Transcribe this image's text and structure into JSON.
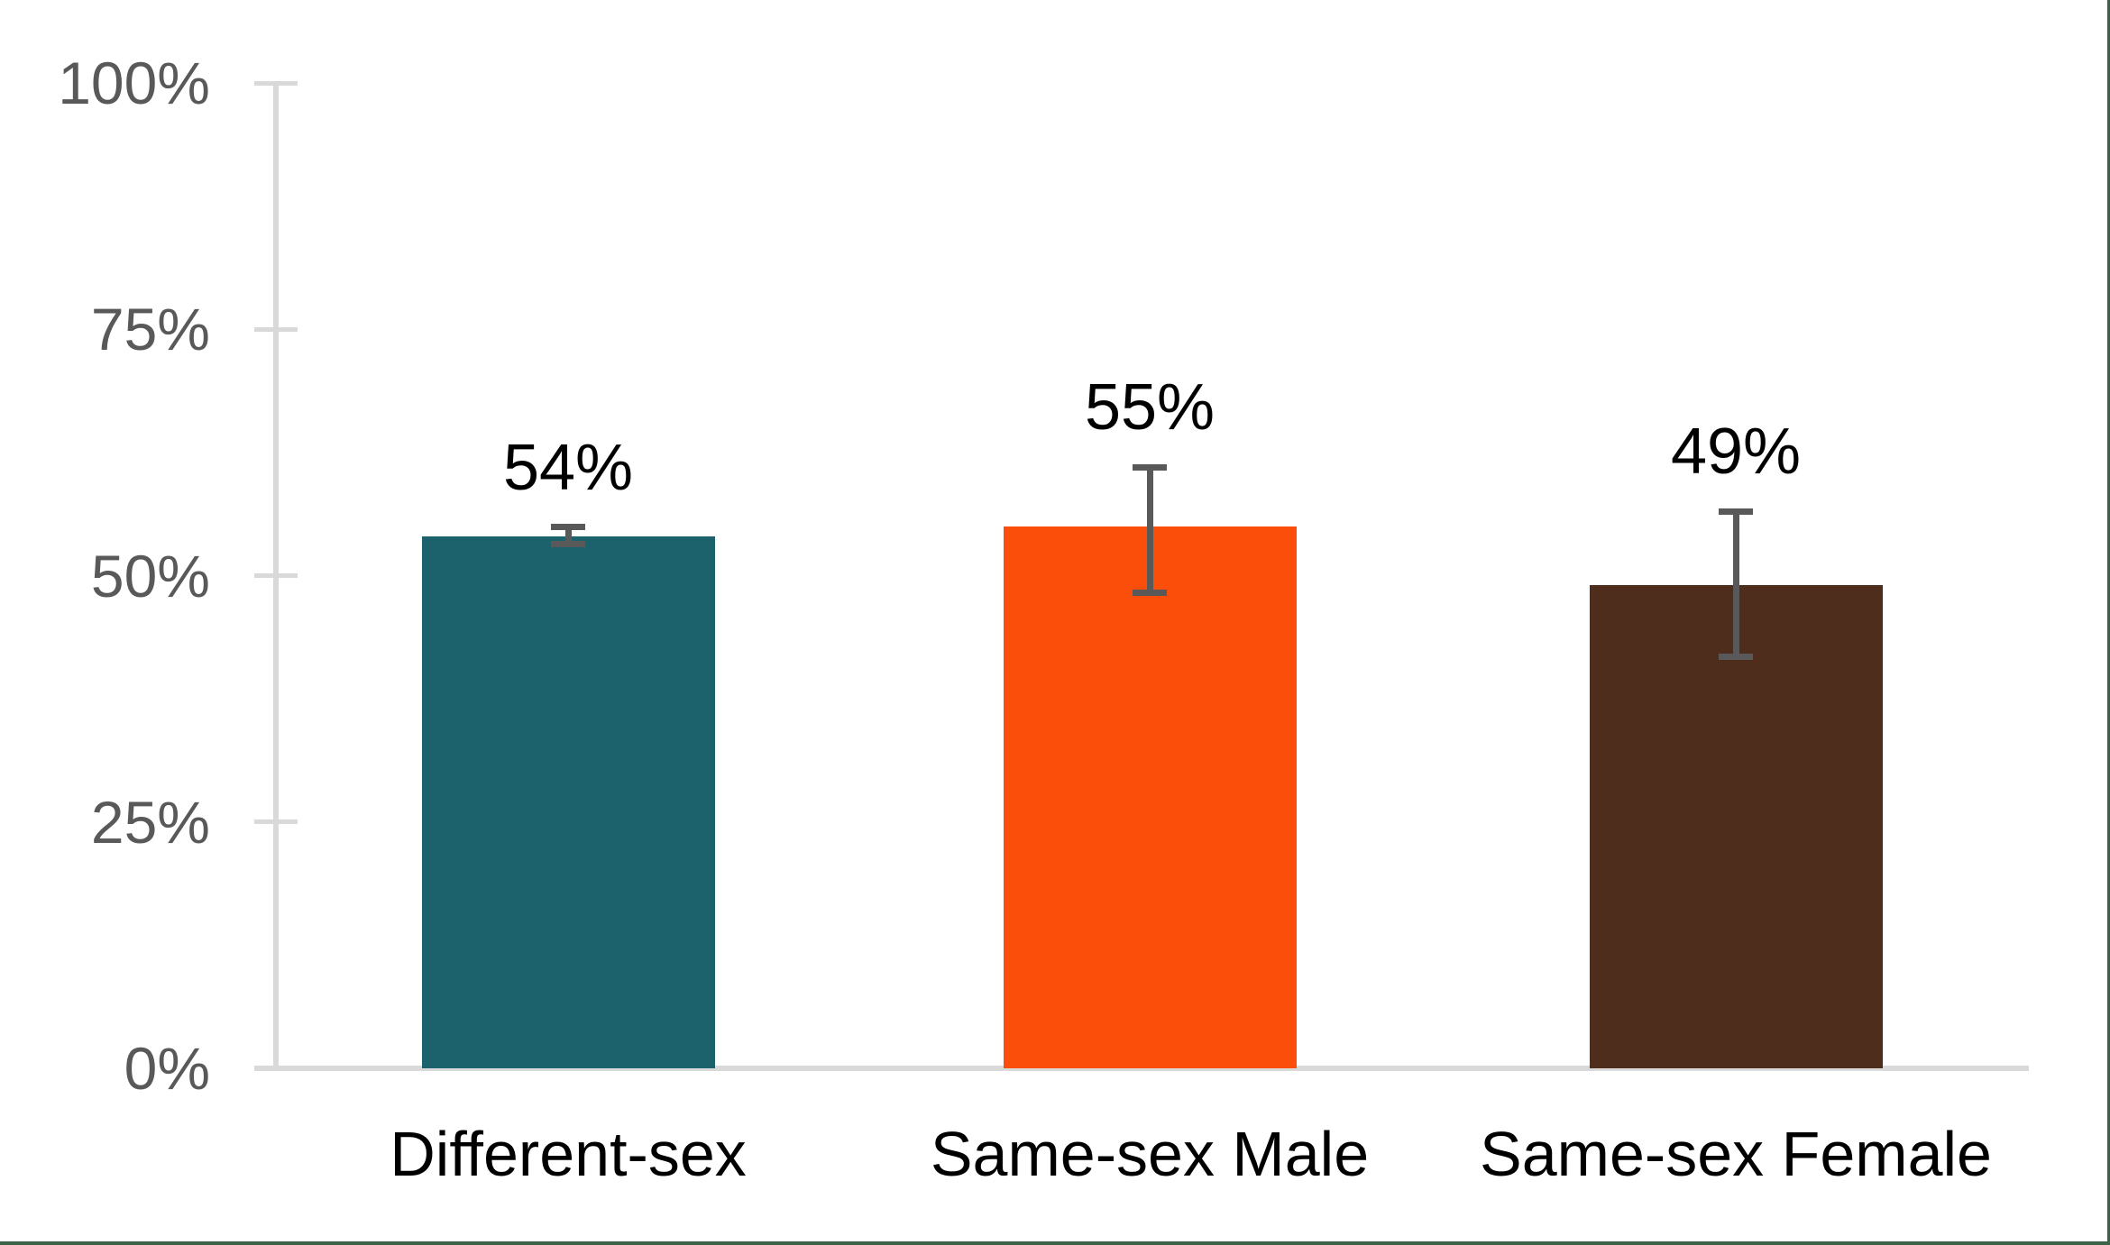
{
  "chart_data": {
    "type": "bar",
    "title": "",
    "xlabel": "",
    "ylabel": "",
    "categories": [
      "Different-sex",
      "Same-sex Male",
      "Same-sex Female"
    ],
    "series": [
      {
        "name": "percent",
        "values": [
          54,
          55,
          49
        ],
        "labels": [
          "54%",
          "55%",
          "49%"
        ],
        "colors": [
          "#1C626D",
          "#FB4E0B",
          "#4F2D1D"
        ],
        "error_bars": [
          {
            "low": 53.2,
            "high": 54.9
          },
          {
            "low": 48.3,
            "high": 61.0
          },
          {
            "low": 41.8,
            "high": 56.5
          }
        ]
      }
    ],
    "y_axis": {
      "min": 0,
      "max": 100,
      "ticks": [
        {
          "label": "0%",
          "value": 0
        },
        {
          "label": "25%",
          "value": 25
        },
        {
          "label": "50%",
          "value": 50
        },
        {
          "label": "75%",
          "value": 75
        },
        {
          "label": "100%",
          "value": 100
        }
      ]
    },
    "grid": false,
    "legend": "none"
  },
  "styles": {
    "background": "#FFFFFF",
    "axis_color": "#D9D9D9",
    "tick_label_color": "#595959",
    "data_label_color": "#000000",
    "category_label_color": "#000000",
    "error_bar_color": "#595959",
    "page_border_color": "#3E6247"
  }
}
